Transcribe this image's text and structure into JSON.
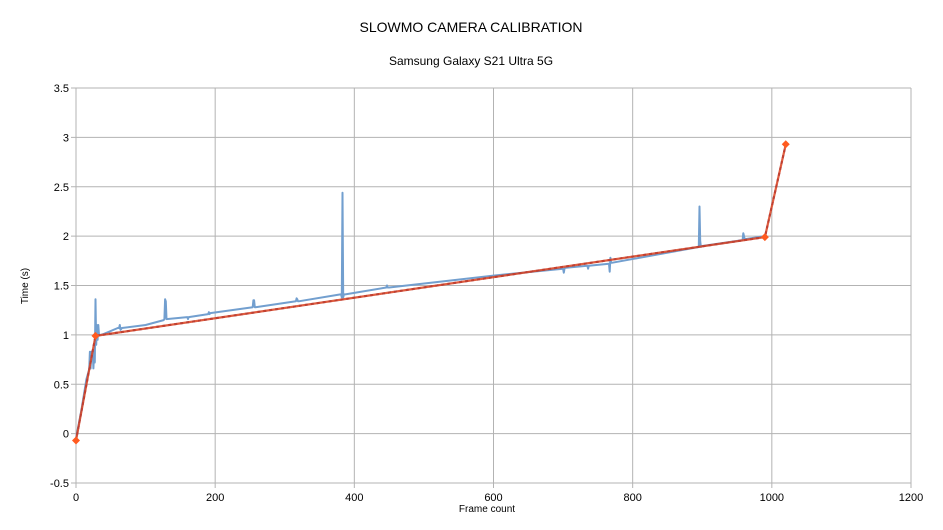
{
  "chart_data": {
    "type": "line",
    "title": "SLOWMO CAMERA CALIBRATION",
    "subtitle": "Samsung Galaxy S21 Ultra 5G",
    "xlabel": "Frame count",
    "ylabel": "Time (s)",
    "xlim": [
      0,
      1200
    ],
    "ylim": [
      -0.5,
      3.5
    ],
    "x_ticks": [
      "0",
      "200",
      "400",
      "600",
      "800",
      "1000",
      "1200"
    ],
    "y_ticks": [
      "-0.5",
      "0",
      "0.5",
      "1",
      "1.5",
      "2",
      "2.5",
      "3",
      "3.5"
    ],
    "grid": true,
    "legend": "none",
    "colors": {
      "measured": "#729fcf",
      "fit": "#3b3b8f",
      "calibration": "#d9411e",
      "calibration_marker": "#ff5a1f",
      "grid": "#b3b3b3"
    },
    "series": [
      {
        "role": "measured",
        "x": [
          0,
          8,
          15,
          19,
          20,
          21,
          22,
          23,
          24,
          25,
          26,
          27,
          28,
          29,
          30,
          31,
          32,
          33,
          35,
          40,
          60,
          62,
          63,
          64,
          66,
          100,
          126,
          127,
          128,
          129,
          130,
          160,
          161,
          162,
          190,
          191,
          192,
          193,
          254,
          255,
          256,
          257,
          258,
          316,
          317,
          318,
          319,
          320,
          380,
          381,
          382,
          383,
          384,
          385,
          386,
          387,
          446,
          447,
          448,
          450,
          600,
          700,
          701,
          702,
          703,
          704,
          735,
          736,
          737,
          766,
          767,
          768,
          769,
          770,
          895,
          896,
          897,
          898,
          899,
          900,
          958,
          959,
          960,
          961,
          962,
          990
        ],
        "y": [
          -0.05,
          0.25,
          0.55,
          0.65,
          0.83,
          0.66,
          0.83,
          0.75,
          0.83,
          0.66,
          0.83,
          0.72,
          1.36,
          0.9,
          1.1,
          0.95,
          1.1,
          1.0,
          1.0,
          1.01,
          1.07,
          1.07,
          1.1,
          1.05,
          1.07,
          1.1,
          1.15,
          1.16,
          1.36,
          1.34,
          1.16,
          1.18,
          1.16,
          1.18,
          1.21,
          1.23,
          1.21,
          1.22,
          1.28,
          1.35,
          1.35,
          1.28,
          1.28,
          1.34,
          1.37,
          1.36,
          1.34,
          1.34,
          1.41,
          1.41,
          1.38,
          2.44,
          1.38,
          1.41,
          1.41,
          1.41,
          1.48,
          1.5,
          1.48,
          1.48,
          1.6,
          1.67,
          1.63,
          1.67,
          1.68,
          1.68,
          1.7,
          1.67,
          1.7,
          1.72,
          1.64,
          1.78,
          1.73,
          1.73,
          1.89,
          2.3,
          1.95,
          1.89,
          1.9,
          1.9,
          1.96,
          2.03,
          2.0,
          1.97,
          1.97,
          2.0
        ]
      },
      {
        "role": "fit",
        "x": [
          0,
          28,
          990,
          1020
        ],
        "y": [
          -0.07,
          0.99,
          1.99,
          2.93
        ]
      },
      {
        "role": "calibration",
        "x": [
          0,
          28,
          990,
          1020
        ],
        "y": [
          -0.07,
          0.99,
          1.99,
          2.93
        ]
      }
    ]
  }
}
